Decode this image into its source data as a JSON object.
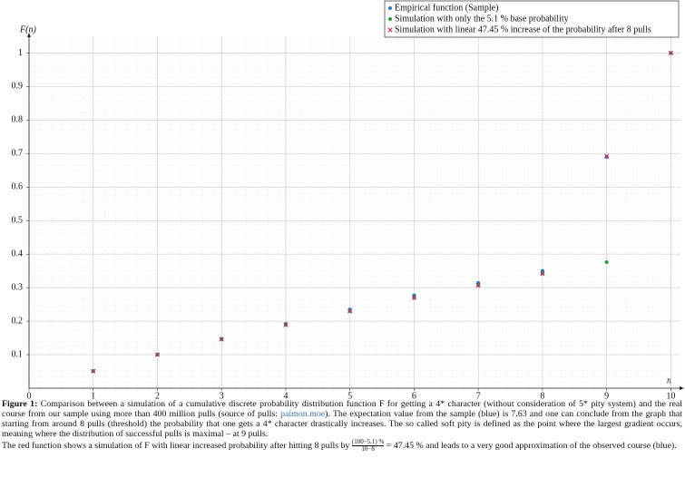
{
  "chart_data": {
    "type": "scatter",
    "y_label": "F(n)",
    "x_label": "n",
    "x": [
      1,
      2,
      3,
      4,
      5,
      6,
      7,
      8,
      9,
      10
    ],
    "series": [
      {
        "name": "Empirical function (Sample)",
        "color": "#2f74b5",
        "marker": "dot",
        "values": [
          0.051,
          0.1,
          0.147,
          0.192,
          0.235,
          0.277,
          0.314,
          0.35,
          0.69,
          1.0
        ]
      },
      {
        "name": "Simulation with only the 5.1 % base probability",
        "color": "#2e9a3a",
        "marker": "dot",
        "values": [
          0.051,
          0.1,
          0.146,
          0.189,
          0.23,
          0.27,
          0.307,
          0.342,
          0.376,
          1.0
        ]
      },
      {
        "name": "Simulation with linear 47.45 % increase of the probability after 8 pulls",
        "color": "#c0306a",
        "marker": "cross",
        "values": [
          0.051,
          0.1,
          0.146,
          0.189,
          0.23,
          0.27,
          0.307,
          0.342,
          0.692,
          1.0
        ]
      }
    ],
    "xlim": [
      0,
      10.15
    ],
    "ylim": [
      0,
      1.05
    ],
    "xticks": [
      0,
      1,
      2,
      3,
      4,
      5,
      6,
      7,
      8,
      9,
      10
    ],
    "yticks": [
      0.1,
      0.2,
      0.3,
      0.4,
      0.5,
      0.6,
      0.7,
      0.8,
      0.9,
      1
    ],
    "grid": true,
    "minor_grid": true,
    "legend": "top-right"
  },
  "caption": {
    "label": "Figure 1:",
    "text1": "Comparison between a simulation of a cumulative discrete probability distribution function F for getting a 4* character (without consideration of 5* pity system) and the real course from our sample using more than 400 million pulls (source of pulls: ",
    "link": "paimon.moe",
    "text2": "). The expectation value from the sample (blue) is 7.63 and one can conclude from the graph that starting from around 8 pulls (threshold) the probability that one gets a 4* character drastically increases. The so called soft pity is defined as the point where the largest gradient occurs, meaning where the distribution of successful pulls is maximal – at 9 pulls.",
    "text3": "The red function shows a simulation of F with linear increased probability after hitting 8 pulls by ",
    "frac_num": "(100−5.1) %",
    "frac_den": "10−8",
    "text4": " = 47.45 % and leads to a very good approximation of the observed course (blue)."
  }
}
